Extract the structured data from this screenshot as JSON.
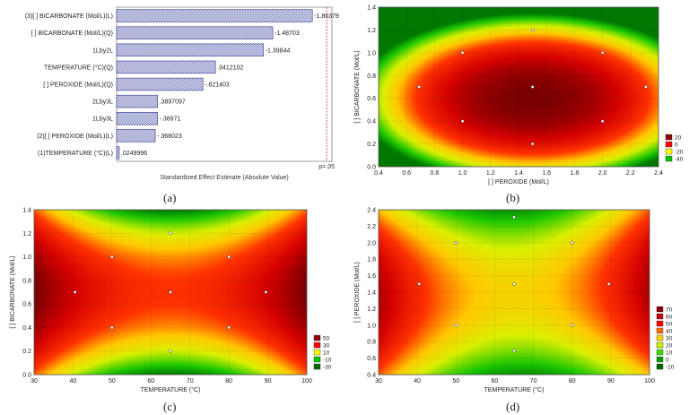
{
  "captions": [
    "(a)",
    "(b)",
    "(c)",
    "(d)"
  ],
  "chart_data": [
    {
      "type": "bar",
      "orientation": "horizontal",
      "categories": [
        "(3)[ ] BICARBONATE (Mol/L)(L)",
        "[ ] BICARBONATE (Mol/L)(Q)",
        "1Lby2L",
        "TEMPERATURE (°C)(Q)",
        "[ ] PEROXIDE (Mol/L)(Q)",
        "2Lby3L",
        "1Lby3L",
        "(2)[ ] PEROXIDE (Mol/L)(L)",
        "(1)TEMPERATURE (°C)(L)"
      ],
      "values": [
        1.86379,
        1.48703,
        1.39844,
        0.9412102,
        0.821403,
        0.3897097,
        0.38971,
        0.368023,
        0.0249996
      ],
      "value_labels": [
        "-1.86379",
        "-1.48703",
        "-1.39844",
        ".9412102",
        "-.821403",
        ".3897097",
        "-.38971",
        "-.368023",
        ".0249996"
      ],
      "xlabel": "Standardized Effect Estimate (Absolute Value)",
      "reference_line": {
        "value": 2.0,
        "label": "p=.05"
      },
      "xlim": [
        0,
        2.05
      ],
      "bar_fill": "#c9cde8",
      "bar_stroke": "#4a4f9a"
    },
    {
      "type": "heatmap",
      "xlabel": "[ ] PEROXIDE (Mol/L)",
      "ylabel": "[ ] BICARBONATE (Mol/L)",
      "xlim": [
        0.4,
        2.4
      ],
      "ylim": [
        0.0,
        1.4
      ],
      "xticks": [
        "0.4",
        "0.6",
        "0.8",
        "1.0",
        "1.2",
        "1.4",
        "1.6",
        "1.8",
        "2.0",
        "2.2",
        "2.4"
      ],
      "yticks": [
        "0.0",
        "0.2",
        "0.4",
        "0.6",
        "0.8",
        "1.0",
        "1.2",
        "1.4"
      ],
      "legend": [
        "20",
        "0",
        "-20",
        "-40"
      ],
      "legend_colors": [
        "#8b0000",
        "#ff0000",
        "#ffff00",
        "#00c800"
      ],
      "center": [
        1.5,
        0.6
      ],
      "points": [
        [
          1.5,
          1.2
        ],
        [
          1.0,
          1.0
        ],
        [
          2.0,
          1.0
        ],
        [
          0.69,
          0.7
        ],
        [
          1.5,
          0.7
        ],
        [
          2.31,
          0.7
        ],
        [
          1.0,
          0.4
        ],
        [
          2.0,
          0.4
        ],
        [
          1.5,
          0.2
        ]
      ]
    },
    {
      "type": "heatmap",
      "xlabel": "TEMPERATURE (°C)",
      "ylabel": "[ ] BICARBONATE (Mol/L)",
      "xlim": [
        30,
        100
      ],
      "ylim": [
        0.0,
        1.4
      ],
      "xticks": [
        "30",
        "40",
        "50",
        "60",
        "70",
        "80",
        "90",
        "100"
      ],
      "yticks": [
        "0.0",
        "0.2",
        "0.4",
        "0.6",
        "0.8",
        "1.0",
        "1.2",
        "1.4"
      ],
      "legend": [
        "50",
        "30",
        "10",
        "-10",
        "-30"
      ],
      "legend_colors": [
        "#8b0000",
        "#ff0000",
        "#ffff00",
        "#00c800",
        "#006400"
      ],
      "points": [
        [
          65,
          1.2
        ],
        [
          50,
          1.0
        ],
        [
          80,
          1.0
        ],
        [
          40.5,
          0.7
        ],
        [
          65,
          0.7
        ],
        [
          89.5,
          0.7
        ],
        [
          50,
          0.4
        ],
        [
          80,
          0.4
        ],
        [
          65,
          0.2
        ]
      ]
    },
    {
      "type": "heatmap",
      "xlabel": "TEMPERATURE (°C)",
      "ylabel": "[ ] PEROXIDE (Mol/L)",
      "xlim": [
        30,
        100
      ],
      "ylim": [
        0.4,
        2.4
      ],
      "xticks": [
        "30",
        "40",
        "50",
        "60",
        "70",
        "80",
        "90",
        "100"
      ],
      "yticks": [
        "0.4",
        "0.6",
        "0.8",
        "1.0",
        "1.2",
        "1.4",
        "1.6",
        "1.8",
        "2.0",
        "2.2",
        "2.4"
      ],
      "legend": [
        "70",
        "60",
        "50",
        "40",
        "30",
        "20",
        "10",
        "0",
        "-10"
      ],
      "legend_colors": [
        "#8b0000",
        "#c00000",
        "#ff0000",
        "#ff6a00",
        "#ffd200",
        "#c8f000",
        "#3cdc00",
        "#00a000",
        "#006400"
      ],
      "points": [
        [
          65,
          2.31
        ],
        [
          50,
          2.0
        ],
        [
          80,
          2.0
        ],
        [
          40.5,
          1.5
        ],
        [
          65,
          1.5
        ],
        [
          89.5,
          1.5
        ],
        [
          50,
          1.0
        ],
        [
          80,
          1.0
        ],
        [
          65,
          0.69
        ]
      ]
    }
  ]
}
